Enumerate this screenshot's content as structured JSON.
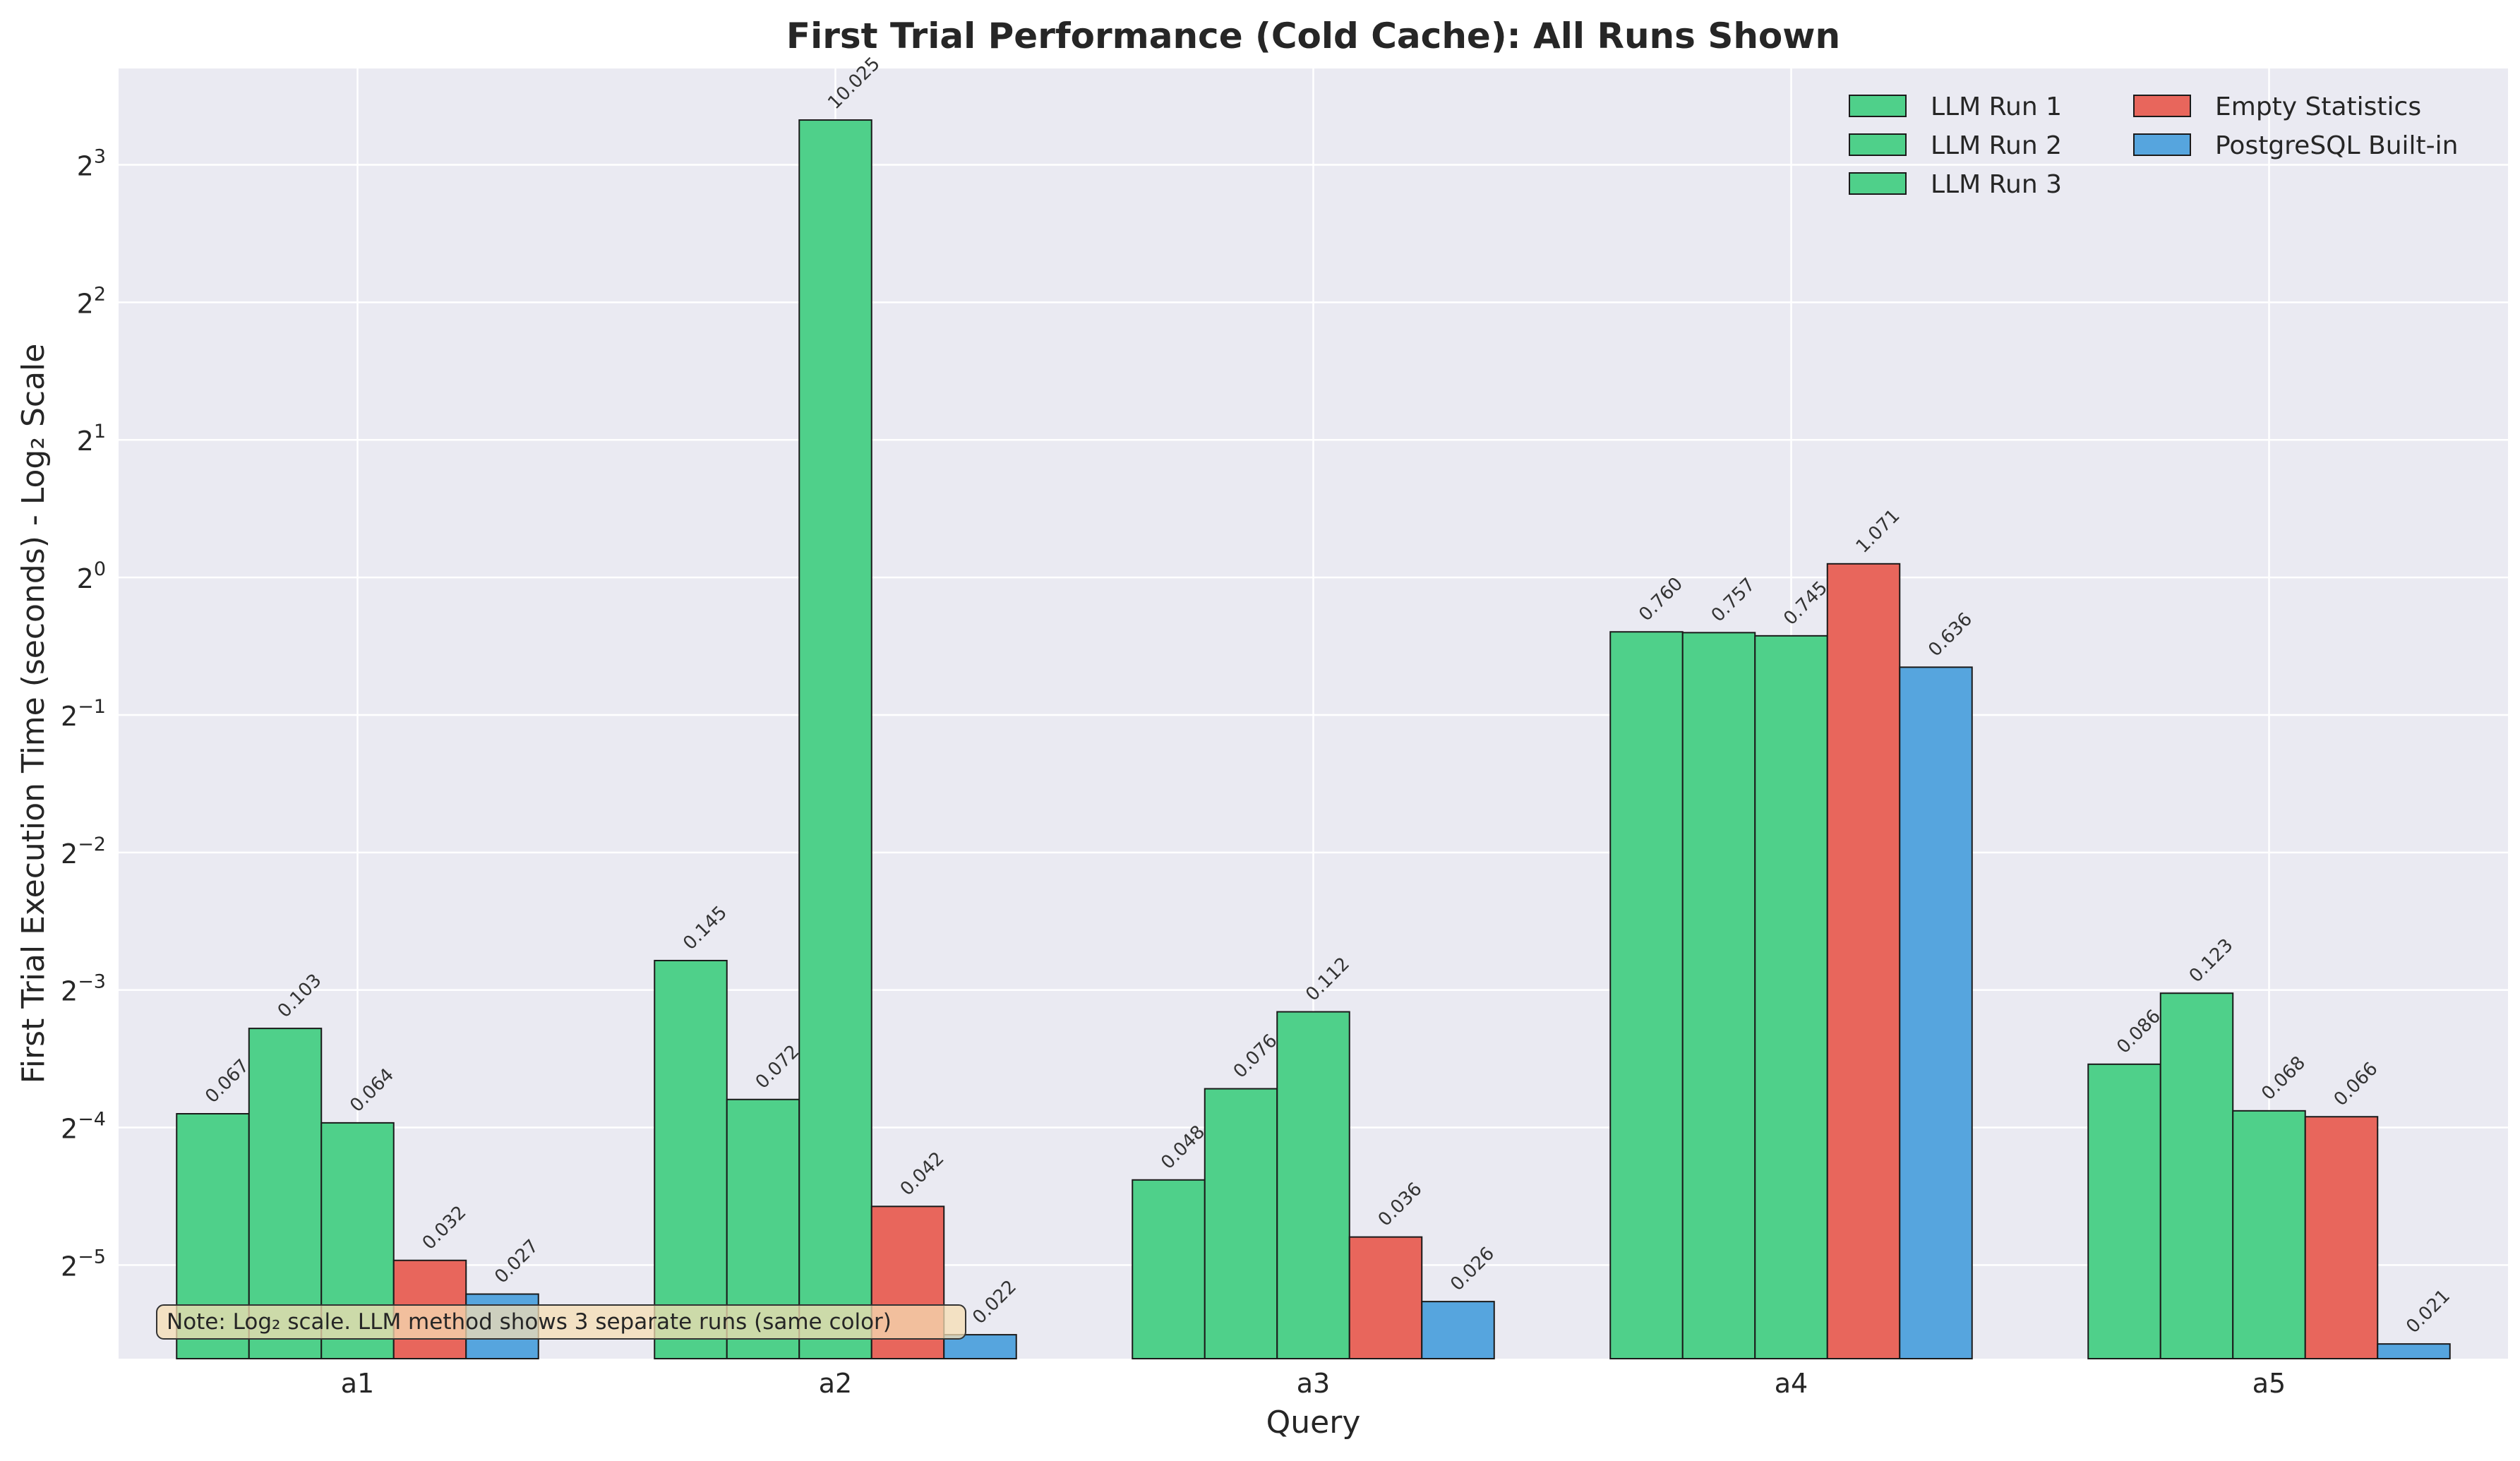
{
  "chart_data": {
    "type": "bar",
    "title": "First Trial Performance (Cold Cache): All Runs Shown",
    "xlabel": "Query",
    "ylabel": "First Trial Execution Time (seconds) - Log₂ Scale",
    "yscale": "log2",
    "ylim": [
      0.0195,
      13
    ],
    "ytick_base": "2",
    "ytick_exponents": [
      "−5",
      "−4",
      "−3",
      "−2",
      "−1",
      "0",
      "1",
      "2",
      "3"
    ],
    "grid": true,
    "legend_position": "top-right",
    "categories": [
      "a1",
      "a2",
      "a3",
      "a4",
      "a5"
    ],
    "series": [
      {
        "name": "LLM Run 1",
        "color": "#4fd08a",
        "values": [
          0.067,
          0.145,
          0.048,
          0.76,
          0.086
        ],
        "labels": [
          "0.067",
          "0.145",
          "0.048",
          "0.760",
          "0.086"
        ]
      },
      {
        "name": "LLM Run 2",
        "color": "#4fd08a",
        "values": [
          0.103,
          0.072,
          0.076,
          0.757,
          0.123
        ],
        "labels": [
          "0.103",
          "0.072",
          "0.076",
          "0.757",
          "0.123"
        ]
      },
      {
        "name": "LLM Run 3",
        "color": "#4fd08a",
        "values": [
          0.064,
          10.025,
          0.112,
          0.745,
          0.068
        ],
        "labels": [
          "0.064",
          "10.025",
          "0.112",
          "0.745",
          "0.068"
        ]
      },
      {
        "name": "Empty Statistics",
        "color": "#e8665c",
        "values": [
          0.032,
          0.042,
          0.036,
          1.071,
          0.066
        ],
        "labels": [
          "0.032",
          "0.042",
          "0.036",
          "1.071",
          "0.066"
        ]
      },
      {
        "name": "PostgreSQL Built-in",
        "color": "#56a5de",
        "values": [
          0.027,
          0.022,
          0.026,
          0.636,
          0.021
        ],
        "labels": [
          "0.027",
          "0.022",
          "0.026",
          "0.636",
          "0.021"
        ]
      }
    ],
    "annotation": "Note: Log₂ scale. LLM method shows 3 separate runs (same color)"
  }
}
